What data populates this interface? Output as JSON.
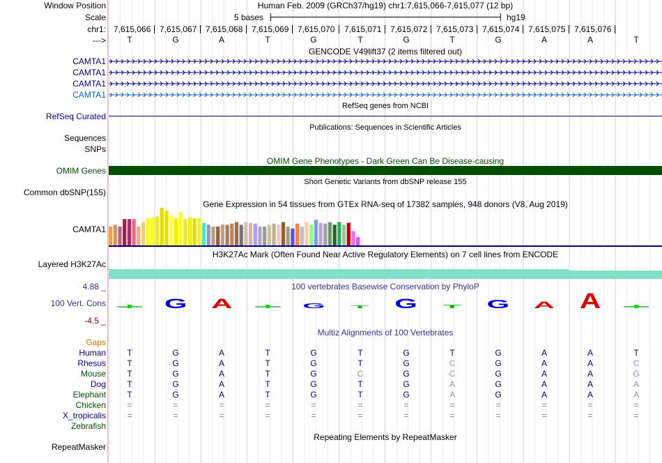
{
  "header": {
    "window_position_label": "Window Position",
    "scale_label": "Scale",
    "chrom_label": "chr1:",
    "strand_label": "--->",
    "assembly_text": "Human Feb. 2009 (GRCh37/hg19)   chr1:7,615,066-7,615,077 (12 bp)",
    "scale_text": "5 bases",
    "db_text": "hg19",
    "positions": [
      "7,615,066",
      "7,615,067",
      "7,615,068",
      "7,615,069",
      "7,615,070",
      "7,615,071",
      "7,615,072",
      "7,615,073",
      "7,615,074",
      "7,615,075",
      "7,615,076"
    ],
    "bases": [
      "T",
      "G",
      "A",
      "T",
      "G",
      "T",
      "G",
      "T",
      "G",
      "A",
      "A",
      "T"
    ]
  },
  "tracks": {
    "gencode": {
      "title": "GENCODE V49lift37 (2 items filtered out)",
      "items": [
        "CAMTA1",
        "CAMTA1",
        "CAMTA1",
        "CAMTA1"
      ]
    },
    "refseq": {
      "label": "RefSeq Curated",
      "title": "RefSeq genes from NCBI"
    },
    "publications": {
      "label_1": "Sequences",
      "label_2": "SNPs",
      "title": "Publications: Sequences in Scientific Articles"
    },
    "omim": {
      "label": "OMIM Genes",
      "title": "OMIM Gene Phenotypes - Dark Green Can Be Disease-causing"
    },
    "dbsnp": {
      "label": "Common dbSNP(155)",
      "title": "Short Genetic Variants from dbSNP release 155"
    },
    "gtex": {
      "label": "CAMTA1",
      "title": "Gene Expression in 54 tissues from GTEx RNA-seq of 17382 samples, 948 donors (V8, Aug 2019)",
      "values": [
        0.5,
        0.55,
        0.5,
        0.7,
        0.7,
        0.7,
        0.5,
        0.62,
        0.72,
        0.75,
        0.78,
        1.0,
        0.92,
        0.8,
        0.72,
        0.88,
        0.7,
        0.75,
        0.72,
        0.73,
        0.6,
        0.55,
        0.5,
        0.5,
        0.55,
        0.55,
        0.58,
        0.62,
        0.55,
        0.62,
        0.6,
        0.58,
        0.5,
        0.5,
        0.55,
        0.58,
        0.55,
        0.62,
        0.5,
        0.45,
        0.58,
        0.5,
        0.62,
        0.55,
        0.68,
        0.6,
        0.58,
        0.62,
        0.55,
        0.62,
        0.55,
        0.6,
        0.38,
        0.22
      ],
      "colors": [
        "#f0a040",
        "#e09060",
        "#c06080",
        "#a02040",
        "#c02060",
        "#ff6080",
        "#e0b080",
        "#f0d060",
        "#ffff00",
        "#ffff20",
        "#f0f000",
        "#e0e000",
        "#e8e000",
        "#ffff40",
        "#f0f000",
        "#ffff00",
        "#e8e830",
        "#f0f000",
        "#e0e000",
        "#f0f020",
        "#50e0d0",
        "#a090c0",
        "#b0a080",
        "#906040",
        "#c0a080",
        "#a08060",
        "#c08060",
        "#907050",
        "#807070",
        "#d0c0b0",
        "#e0b0a0",
        "#a0a0ff",
        "#c0a0c0",
        "#90a090",
        "#d0c0a0",
        "#c0b090",
        "#ffc0c0",
        "#906030",
        "#a0a080",
        "#5050ff",
        "#ff8040",
        "#c0c0c0",
        "#ffd0a0",
        "#90ff90",
        "#70a0ff",
        "#c0a0d0",
        "#a0a0a0",
        "#60a060",
        "#306030",
        "#20b060",
        "#a0c0a0",
        "#c00000",
        "#ff60ff",
        "#ff40ff"
      ]
    },
    "h3k27ac": {
      "label": "Layered H3K27Ac",
      "title": "H3K27Ac Mark (Often Found Near Active Regulatory Elements) on 7 cell lines from ENCODE"
    },
    "conservation": {
      "label": "100 Vert. Cons",
      "title": "100 vertebrates Basewise Conservation by PhyloP",
      "max_label": "4.88 _",
      "min_label": "-4.5 _",
      "logo_bases": [
        "T",
        "G",
        "A",
        "T",
        "G",
        "T",
        "G",
        "T",
        "G",
        "A",
        "A",
        "T"
      ],
      "logo_heights": [
        0.05,
        0.55,
        0.55,
        0.05,
        0.3,
        0.15,
        0.55,
        0.2,
        0.5,
        0.4,
        0.9,
        0.05
      ]
    },
    "multiz": {
      "title": "Multiz Alignments of 100 Vertebrates",
      "gaps_label": "Gaps",
      "species": [
        {
          "name": "Human",
          "cls": "navy",
          "bases": [
            "T",
            "G",
            "A",
            "T",
            "G",
            "T",
            "G",
            "T",
            "G",
            "A",
            "A",
            "T"
          ]
        },
        {
          "name": "Rhesus",
          "cls": "navy",
          "bases": [
            "T",
            "G",
            "A",
            "T",
            "G",
            "T",
            "G",
            "C",
            "G",
            "A",
            "A",
            "C"
          ]
        },
        {
          "name": "Mouse",
          "cls": "darkgreen",
          "bases": [
            "T",
            "G",
            "A",
            "T",
            "G",
            "C",
            "G",
            "C",
            "G",
            "A",
            "A",
            "G"
          ]
        },
        {
          "name": "Dog",
          "cls": "navy",
          "bases": [
            "T",
            "G",
            "A",
            "T",
            "G",
            "T",
            "G",
            "A",
            "G",
            "A",
            "A",
            "A"
          ]
        },
        {
          "name": "Elephant",
          "cls": "darkgreen",
          "bases": [
            "T",
            "G",
            "A",
            "T",
            "G",
            "T",
            "G",
            "A",
            "G",
            "A",
            "A",
            "A"
          ]
        },
        {
          "name": "Chicken",
          "cls": "darkgreen",
          "bases": [
            "=",
            "=",
            "=",
            "=",
            "=",
            "=",
            "=",
            "=",
            "=",
            "=",
            "=",
            "="
          ]
        },
        {
          "name": "X_tropicalis",
          "cls": "navy",
          "bases": [
            "=",
            "=",
            "=",
            "=",
            "=",
            "=",
            "=",
            "=",
            "=",
            "=",
            "=",
            "="
          ]
        },
        {
          "name": "Zebrafish",
          "cls": "darkgreen",
          "bases": [
            "",
            "",
            "",
            "",
            "",
            "",
            "",
            "",
            "",
            "",
            "",
            ""
          ]
        }
      ]
    },
    "repeatmasker": {
      "label": "RepeatMasker",
      "title": "Repeating Elements by RepeatMasker"
    }
  },
  "colors": {
    "gene_navy": "#000080",
    "gene_teal": "#1060b0",
    "omim_green": "#004d00",
    "h3k27ac": "#80e0c8",
    "grid": "#d8d8f0"
  }
}
